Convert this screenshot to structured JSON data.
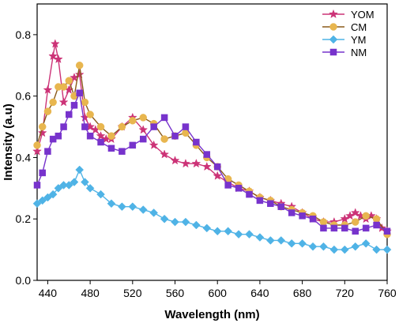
{
  "chart_data": {
    "type": "line",
    "xlabel": "Wavelength (nm)",
    "ylabel": "Intensity (a.u)",
    "xlim": [
      430,
      760
    ],
    "ylim": [
      0.0,
      0.9
    ],
    "xticks": [
      440,
      480,
      520,
      560,
      600,
      640,
      680,
      720,
      760
    ],
    "yticks": [
      0.0,
      0.2,
      0.4,
      0.6,
      0.8
    ],
    "grid": false,
    "legend_position": "top-right",
    "series": [
      {
        "name": "YOM",
        "color": "#cc3377",
        "marker": "star",
        "x": [
          430,
          435,
          440,
          445,
          447,
          450,
          455,
          460,
          465,
          470,
          475,
          480,
          485,
          490,
          495,
          500,
          510,
          520,
          530,
          540,
          550,
          560,
          570,
          580,
          590,
          600,
          610,
          620,
          630,
          640,
          650,
          660,
          670,
          680,
          690,
          700,
          710,
          720,
          725,
          730,
          735,
          740,
          745,
          750,
          755,
          760
        ],
        "y": [
          0.42,
          0.48,
          0.62,
          0.73,
          0.77,
          0.72,
          0.58,
          0.62,
          0.66,
          0.67,
          0.53,
          0.5,
          0.49,
          0.47,
          0.46,
          0.46,
          0.5,
          0.53,
          0.49,
          0.44,
          0.41,
          0.39,
          0.38,
          0.38,
          0.37,
          0.34,
          0.32,
          0.3,
          0.29,
          0.27,
          0.26,
          0.25,
          0.24,
          0.22,
          0.2,
          0.19,
          0.19,
          0.2,
          0.21,
          0.22,
          0.21,
          0.2,
          0.21,
          0.2,
          0.17,
          0.16
        ]
      },
      {
        "name": "CM",
        "color": "#e8b64f",
        "marker": "circle",
        "x": [
          430,
          435,
          440,
          445,
          450,
          455,
          460,
          465,
          470,
          475,
          480,
          490,
          500,
          510,
          520,
          530,
          540,
          550,
          560,
          570,
          580,
          590,
          600,
          610,
          620,
          630,
          640,
          650,
          660,
          670,
          680,
          690,
          700,
          710,
          720,
          730,
          740,
          750,
          760
        ],
        "y": [
          0.44,
          0.5,
          0.55,
          0.58,
          0.63,
          0.63,
          0.65,
          0.6,
          0.7,
          0.58,
          0.54,
          0.5,
          0.47,
          0.5,
          0.52,
          0.53,
          0.51,
          0.46,
          0.47,
          0.48,
          0.44,
          0.4,
          0.37,
          0.33,
          0.31,
          0.29,
          0.27,
          0.26,
          0.24,
          0.23,
          0.22,
          0.21,
          0.19,
          0.18,
          0.18,
          0.19,
          0.21,
          0.2,
          0.15
        ]
      },
      {
        "name": "YM",
        "color": "#4fb3e6",
        "marker": "diamond",
        "x": [
          430,
          435,
          440,
          445,
          450,
          455,
          460,
          465,
          470,
          475,
          480,
          490,
          500,
          510,
          520,
          530,
          540,
          550,
          560,
          570,
          580,
          590,
          600,
          610,
          620,
          630,
          640,
          650,
          660,
          670,
          680,
          690,
          700,
          710,
          720,
          730,
          740,
          750,
          760
        ],
        "y": [
          0.25,
          0.26,
          0.27,
          0.28,
          0.3,
          0.31,
          0.31,
          0.32,
          0.36,
          0.32,
          0.3,
          0.28,
          0.25,
          0.24,
          0.24,
          0.23,
          0.22,
          0.2,
          0.19,
          0.19,
          0.18,
          0.17,
          0.16,
          0.16,
          0.15,
          0.15,
          0.14,
          0.13,
          0.13,
          0.12,
          0.12,
          0.11,
          0.11,
          0.1,
          0.1,
          0.11,
          0.12,
          0.1,
          0.1
        ]
      },
      {
        "name": "NM",
        "color": "#7733cc",
        "marker": "square",
        "x": [
          430,
          435,
          440,
          445,
          450,
          455,
          460,
          465,
          470,
          475,
          480,
          490,
          500,
          510,
          520,
          530,
          540,
          550,
          560,
          570,
          580,
          590,
          600,
          610,
          620,
          630,
          640,
          650,
          660,
          670,
          680,
          690,
          700,
          710,
          720,
          730,
          740,
          750,
          760
        ],
        "y": [
          0.31,
          0.35,
          0.42,
          0.46,
          0.47,
          0.5,
          0.54,
          0.57,
          0.61,
          0.5,
          0.47,
          0.45,
          0.43,
          0.42,
          0.44,
          0.46,
          0.5,
          0.53,
          0.47,
          0.5,
          0.45,
          0.41,
          0.37,
          0.31,
          0.3,
          0.28,
          0.26,
          0.25,
          0.24,
          0.22,
          0.21,
          0.2,
          0.17,
          0.17,
          0.17,
          0.16,
          0.17,
          0.18,
          0.16
        ]
      }
    ]
  }
}
